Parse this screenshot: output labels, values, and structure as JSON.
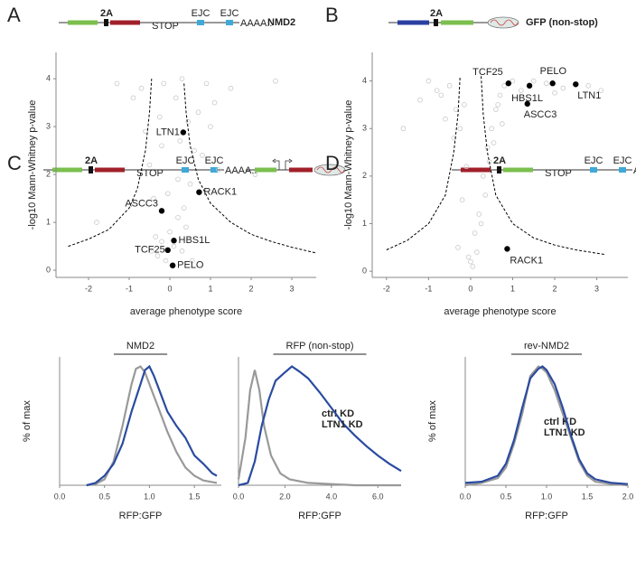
{
  "chart_data": [
    {
      "panel": "A",
      "type": "scatter",
      "title": "NMD2",
      "construct": [
        "2A",
        "STOP",
        "EJC",
        "EJC",
        "AAAA.."
      ],
      "xlabel": "average phenotype score",
      "ylabel": "-log10 Mann-Whitney p-value",
      "xlim": [
        -2.8,
        3.6
      ],
      "ylim": [
        -0.15,
        4.55
      ],
      "xticks": [
        -2,
        -1,
        0,
        1,
        2,
        3
      ],
      "yticks": [
        0,
        1,
        2,
        3,
        4
      ],
      "series": [
        {
          "color": "#c8c8c8",
          "x": [
            -0.3,
            -0.2,
            -0.1,
            0,
            0.1,
            0.2,
            0.3,
            0.4,
            -0.4,
            -0.5,
            0.5,
            0.6,
            -0.25,
            -0.15,
            0.15,
            0.25,
            -0.35,
            0.35,
            0.45,
            -0.45,
            -0.6,
            0.7,
            0.8,
            -0.7,
            1.0,
            1.2,
            -0.9,
            1.5,
            -1.3,
            2.1,
            0.05,
            -0.05,
            0.2,
            -0.2,
            0.3,
            0.9,
            1.1,
            -1.8,
            2.6,
            0.55
          ],
          "y": [
            0.3,
            0.6,
            0.2,
            0.8,
            0.5,
            1.1,
            0.4,
            0.9,
            1.5,
            2.2,
            1.8,
            2.5,
            3.2,
            3.9,
            3.6,
            2.7,
            0.7,
            1.3,
            3.1,
            0.4,
            2.9,
            3.3,
            2.4,
            3.8,
            3.0,
            2.1,
            3.6,
            3.8,
            3.9,
            2.0,
            0.1,
            1.6,
            1.9,
            2.6,
            4.0,
            3.9,
            3.5,
            1.0,
            3.95,
            0.2
          ]
        },
        {
          "color": "#000000",
          "style": "dashed",
          "x": [
            -2.5,
            -2.0,
            -1.5,
            -1.0,
            -0.8,
            -0.6,
            -0.5,
            -0.45,
            null,
            0.35,
            0.4,
            0.5,
            0.7,
            1.0,
            1.5,
            2.0,
            2.5,
            3.0,
            3.6
          ],
          "y": [
            0.5,
            0.65,
            0.85,
            1.3,
            1.7,
            2.5,
            3.3,
            4.0,
            null,
            3.9,
            3.3,
            2.6,
            1.9,
            1.4,
            1.0,
            0.75,
            0.6,
            0.48,
            0.36
          ]
        },
        {
          "color": "#000000",
          "x": [
            0.33,
            0.72,
            -0.2,
            0.1,
            -0.05,
            0.07
          ],
          "y": [
            2.88,
            1.63,
            1.24,
            0.62,
            0.42,
            0.1
          ],
          "labels": [
            "LTN1",
            "RACK1",
            "ASCC3",
            "HBS1L",
            "TCF25",
            "PELO"
          ]
        }
      ]
    },
    {
      "panel": "B",
      "type": "scatter",
      "title": "GFP (non-stop)",
      "construct": [
        "2A"
      ],
      "xlabel": "average phenotype score",
      "ylabel": "-log10 Mann-Whitney p-value",
      "xlim": [
        -2.34,
        3.74
      ],
      "ylim": [
        -0.13,
        4.6
      ],
      "xticks": [
        -2,
        -1,
        0,
        1,
        2,
        3
      ],
      "yticks": [
        0,
        1,
        2,
        3,
        4
      ],
      "series": [
        {
          "color": "#c8c8c8",
          "x": [
            -0.3,
            -0.2,
            -0.1,
            0,
            0.1,
            0.2,
            0.3,
            0.4,
            -0.5,
            -0.8,
            -1.2,
            -1.6,
            -0.6,
            0.5,
            0.6,
            0.7,
            0.8,
            1.0,
            1.2,
            1.5,
            1.8,
            2.2,
            2.8,
            3.1,
            -0.4,
            -0.15,
            0.15,
            0.25,
            0.35,
            0.45,
            -0.25,
            0.05,
            -0.05,
            0.55,
            0.65,
            -1.0,
            -0.7,
            -0.35,
            0.75,
            2.0
          ],
          "y": [
            0.5,
            1.5,
            2.2,
            0.2,
            0.8,
            1.2,
            2.0,
            2.6,
            3.9,
            3.8,
            3.6,
            3.0,
            3.2,
            3.0,
            3.4,
            3.7,
            3.9,
            4.0,
            3.8,
            4.0,
            3.95,
            3.85,
            3.9,
            3.8,
            2.8,
            3.5,
            0.4,
            1.0,
            1.6,
            2.3,
            3.0,
            0.1,
            0.3,
            2.7,
            3.5,
            4.0,
            3.7,
            3.4,
            3.1,
            3.75
          ]
        },
        {
          "color": "#000000",
          "style": "dashed",
          "x": [
            -2.0,
            -1.5,
            -1.0,
            -0.6,
            -0.4,
            -0.3,
            -0.25,
            null,
            0.25,
            0.3,
            0.4,
            0.6,
            1.0,
            1.5,
            2.0,
            2.5,
            3.2
          ],
          "y": [
            0.45,
            0.65,
            1.0,
            1.6,
            2.5,
            3.3,
            4.1,
            null,
            4.1,
            3.3,
            2.5,
            1.6,
            1.0,
            0.7,
            0.55,
            0.45,
            0.35
          ]
        },
        {
          "color": "#000000",
          "x": [
            0.9,
            1.95,
            2.5,
            1.4,
            1.35,
            0.87
          ],
          "y": [
            3.95,
            3.95,
            3.93,
            3.9,
            3.52,
            0.47
          ],
          "labels": [
            "TCF25",
            "PELO",
            "LTN1",
            "HBS1L",
            "ASCC3",
            "RACK1"
          ]
        }
      ]
    },
    {
      "panel": "C",
      "type": "line",
      "title": "NMD2",
      "construct": [
        "2A",
        "STOP",
        "EJC",
        "EJC",
        "AAAA.."
      ],
      "xlabel": "RFP:GFP",
      "ylabel": "% of max",
      "xlim": [
        0,
        1.8
      ],
      "ylim": [
        0,
        1.08
      ],
      "xticks": [
        {
          "value": 0,
          "label": "0.0"
        },
        {
          "value": 0.5,
          "label": "0.5"
        },
        {
          "value": 1,
          "label": "1.0"
        },
        {
          "value": 1.5,
          "label": "1.5"
        }
      ],
      "series": [
        {
          "color": "#999999",
          "x": [
            0.3,
            0.4,
            0.5,
            0.6,
            0.7,
            0.8,
            0.85,
            0.9,
            0.95,
            1.0,
            1.05,
            1.1,
            1.2,
            1.3,
            1.4,
            1.5,
            1.6,
            1.75
          ],
          "y": [
            0,
            0.01,
            0.05,
            0.2,
            0.5,
            0.85,
            0.98,
            1.0,
            0.95,
            0.85,
            0.75,
            0.65,
            0.45,
            0.28,
            0.15,
            0.08,
            0.04,
            0.02
          ]
        },
        {
          "color": "#2b4ba0",
          "x": [
            0.3,
            0.4,
            0.5,
            0.6,
            0.7,
            0.8,
            0.9,
            0.95,
            1.0,
            1.05,
            1.1,
            1.2,
            1.3,
            1.4,
            1.5,
            1.6,
            1.7,
            1.75
          ],
          "y": [
            0,
            0.02,
            0.08,
            0.18,
            0.35,
            0.62,
            0.85,
            0.97,
            1.0,
            0.92,
            0.82,
            0.62,
            0.5,
            0.4,
            0.25,
            0.18,
            0.1,
            0.08
          ]
        }
      ]
    },
    {
      "type": "line",
      "title": "RFP (non-stop)",
      "xlabel": "RFP:GFP",
      "xlim": [
        0,
        7
      ],
      "ylim": [
        0,
        1.08
      ],
      "xticks": [
        {
          "value": 0,
          "label": "0.0"
        },
        {
          "value": 2,
          "label": "2.0"
        },
        {
          "value": 4,
          "label": "4.0"
        },
        {
          "value": 6,
          "label": "6.0"
        }
      ],
      "series": [
        {
          "name": "ctrl KD",
          "color": "#999999",
          "x": [
            0,
            0.3,
            0.5,
            0.7,
            0.9,
            1.1,
            1.4,
            1.8,
            2.2,
            3,
            4,
            5,
            6,
            7
          ],
          "y": [
            0.05,
            0.4,
            0.8,
            0.97,
            0.8,
            0.5,
            0.25,
            0.1,
            0.05,
            0.02,
            0.01,
            0,
            0,
            0
          ]
        },
        {
          "name": "LTN1 KD",
          "color": "#2b4ba0",
          "x": [
            0,
            0.4,
            0.7,
            1.0,
            1.3,
            1.6,
            2.0,
            2.3,
            2.6,
            3.0,
            3.5,
            4.0,
            4.5,
            5.0,
            5.5,
            6.0,
            6.5,
            7.0
          ],
          "y": [
            0,
            0.02,
            0.2,
            0.5,
            0.72,
            0.88,
            0.95,
            1.0,
            0.96,
            0.9,
            0.78,
            0.65,
            0.52,
            0.42,
            0.33,
            0.25,
            0.18,
            0.12
          ]
        }
      ]
    },
    {
      "panel": "D",
      "type": "line",
      "title": "rev-NMD2",
      "construct": [
        "2A",
        "STOP",
        "EJC",
        "EJC",
        "AAAA.."
      ],
      "xlabel": "RFP:GFP",
      "ylabel": "% of max",
      "xlim": [
        0,
        2
      ],
      "ylim": [
        0,
        1.08
      ],
      "xticks": [
        {
          "value": 0,
          "label": "0.0"
        },
        {
          "value": 0.5,
          "label": "0.5"
        },
        {
          "value": 1,
          "label": "1.0"
        },
        {
          "value": 1.5,
          "label": "1.5"
        },
        {
          "value": 2,
          "label": "2.0"
        }
      ],
      "series": [
        {
          "name": "ctrl KD",
          "color": "#999999",
          "x": [
            0,
            0.2,
            0.4,
            0.5,
            0.6,
            0.7,
            0.8,
            0.9,
            0.95,
            1.0,
            1.1,
            1.2,
            1.3,
            1.4,
            1.5,
            1.6,
            1.8,
            2.0
          ],
          "y": [
            0,
            0.02,
            0.06,
            0.15,
            0.35,
            0.6,
            0.92,
            1.0,
            0.98,
            0.95,
            0.8,
            0.6,
            0.4,
            0.2,
            0.08,
            0.03,
            0.01,
            0
          ]
        },
        {
          "name": "LTN1 KD",
          "color": "#2b4ba0",
          "x": [
            0,
            0.2,
            0.4,
            0.5,
            0.6,
            0.7,
            0.8,
            0.9,
            0.95,
            1.0,
            1.1,
            1.2,
            1.3,
            1.4,
            1.5,
            1.6,
            1.8,
            2.0
          ],
          "y": [
            0.02,
            0.03,
            0.08,
            0.18,
            0.38,
            0.65,
            0.9,
            0.98,
            1.0,
            0.97,
            0.85,
            0.65,
            0.42,
            0.22,
            0.1,
            0.05,
            0.02,
            0.01
          ]
        }
      ]
    }
  ]
}
